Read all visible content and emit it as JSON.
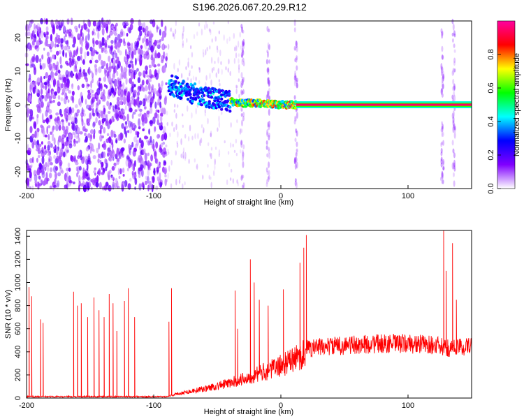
{
  "title": "S196.2026.067.20.29.R12",
  "chart_data": [
    {
      "type": "heatmap",
      "xlabel": "Height of straight line (km)",
      "ylabel": "Frequency (Hz)",
      "xlim": [
        -200,
        150
      ],
      "ylim": [
        -25,
        25
      ],
      "x_ticks": [
        -200,
        -100,
        0,
        100
      ],
      "y_ticks": [
        20,
        10,
        0,
        -10,
        -20
      ],
      "colorbar": {
        "label": "Normalized spectral amplitude",
        "range": [
          0.0,
          1.0
        ],
        "ticks": [
          0.0,
          0.2,
          0.4,
          0.6,
          0.8
        ],
        "colors": [
          "#ffffff",
          "#8000ff",
          "#0000ff",
          "#00ffff",
          "#00ff00",
          "#ffff00",
          "#ff0000",
          "#ff00a0"
        ]
      },
      "features": {
        "noise_region_x": [
          -200,
          -90
        ],
        "dispersed_trace": {
          "x": [
            -88,
            -80,
            -70,
            -60,
            -50,
            -40,
            -30,
            -20,
            -10,
            0,
            12
          ],
          "y": [
            6,
            5,
            3.5,
            2.5,
            1.5,
            1,
            0.5,
            0.5,
            0.3,
            0,
            0
          ]
        },
        "carrier_band": {
          "x_start": 12,
          "x_end": 150,
          "frequency": 0,
          "amplitude": 0.95
        },
        "vertical_streaks_x": [
          -30,
          -10,
          12,
          127,
          136
        ]
      }
    },
    {
      "type": "line",
      "xlabel": "Height of straight line (km)",
      "ylabel": "SNR (10 * v/v)",
      "xlim": [
        -200,
        150
      ],
      "ylim": [
        0,
        1450
      ],
      "x_ticks": [
        -200,
        -100,
        0,
        100
      ],
      "y_ticks": [
        0,
        200,
        400,
        600,
        800,
        1000,
        1200,
        1400
      ],
      "color": "#ff0000",
      "baseline": {
        "x": [
          -200,
          -90,
          -80,
          -60,
          -40,
          -20,
          0,
          10,
          19,
          20,
          40,
          60,
          80,
          100,
          120,
          130,
          140,
          150
        ],
        "y": [
          12,
          12,
          40,
          80,
          130,
          200,
          280,
          330,
          390,
          430,
          450,
          460,
          470,
          470,
          460,
          430,
          440,
          450
        ]
      },
      "spikes": [
        {
          "x": -198,
          "y": 960
        },
        {
          "x": -196,
          "y": 880
        },
        {
          "x": -189,
          "y": 680
        },
        {
          "x": -187,
          "y": 650
        },
        {
          "x": -163,
          "y": 920
        },
        {
          "x": -160,
          "y": 800
        },
        {
          "x": -157,
          "y": 820
        },
        {
          "x": -152,
          "y": 700
        },
        {
          "x": -147,
          "y": 870
        },
        {
          "x": -143,
          "y": 760
        },
        {
          "x": -139,
          "y": 700
        },
        {
          "x": -135,
          "y": 900
        },
        {
          "x": -132,
          "y": 820
        },
        {
          "x": -129,
          "y": 580
        },
        {
          "x": -123,
          "y": 840
        },
        {
          "x": -120,
          "y": 950
        },
        {
          "x": -115,
          "y": 700
        },
        {
          "x": -88,
          "y": 660
        },
        {
          "x": -86,
          "y": 950
        },
        {
          "x": -36,
          "y": 930
        },
        {
          "x": -34,
          "y": 600
        },
        {
          "x": -24,
          "y": 1200
        },
        {
          "x": -21,
          "y": 1000
        },
        {
          "x": -17,
          "y": 850
        },
        {
          "x": -10,
          "y": 800
        },
        {
          "x": 2,
          "y": 940
        },
        {
          "x": 15,
          "y": 1170
        },
        {
          "x": 18,
          "y": 1300
        },
        {
          "x": 20,
          "y": 1410
        },
        {
          "x": 128,
          "y": 1450
        },
        {
          "x": 130,
          "y": 1100
        },
        {
          "x": 135,
          "y": 1340
        },
        {
          "x": 138,
          "y": 850
        }
      ]
    }
  ]
}
